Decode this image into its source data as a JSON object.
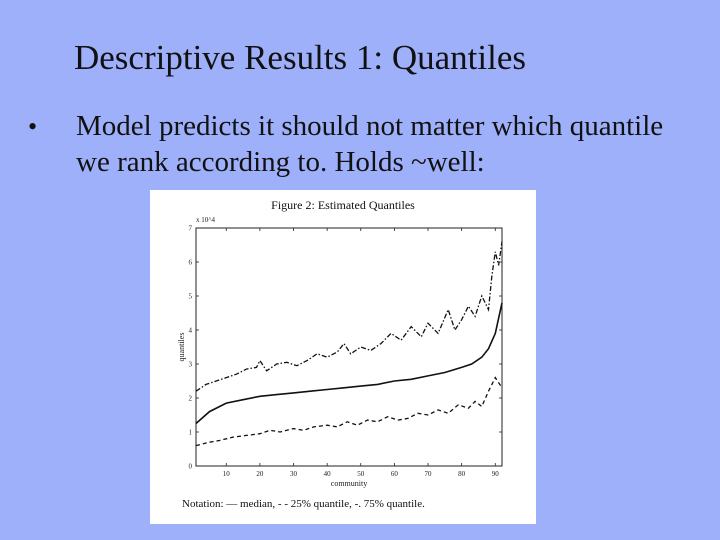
{
  "slide": {
    "title": "Descriptive Results 1: Quantiles",
    "bullet_symbol": "•",
    "bullet_text": "Model predicts it should not matter which quantile we rank according to. Holds ~well:"
  },
  "figure": {
    "title": "Figure 2: Estimated Quantiles",
    "caption": "Notation: — median, - - 25% quantile, -. 75% quantile.",
    "background": "#ffffff"
  },
  "chart_data": {
    "type": "line",
    "title": "Figure 2: Estimated Quantiles",
    "xlabel": "community",
    "ylabel": "quantiles",
    "y_multiplier": "x 10^4",
    "xlim": [
      1,
      92
    ],
    "ylim": [
      0,
      7
    ],
    "x_ticks": [
      10,
      20,
      30,
      40,
      50,
      60,
      70,
      80,
      90
    ],
    "y_ticks": [
      0,
      1,
      2,
      3,
      4,
      5,
      6,
      7
    ],
    "grid": false,
    "series": [
      {
        "name": "median",
        "line_style": "solid",
        "x": [
          1,
          5,
          10,
          15,
          20,
          25,
          30,
          35,
          40,
          45,
          50,
          55,
          60,
          65,
          70,
          75,
          80,
          83,
          86,
          88,
          90,
          92
        ],
        "values": [
          1.25,
          1.6,
          1.85,
          1.95,
          2.05,
          2.1,
          2.15,
          2.2,
          2.25,
          2.3,
          2.35,
          2.4,
          2.5,
          2.55,
          2.65,
          2.75,
          2.9,
          3.0,
          3.2,
          3.45,
          3.9,
          4.8
        ]
      },
      {
        "name": "25% quantile",
        "line_style": "dashed",
        "x": [
          1,
          5,
          8,
          12,
          16,
          20,
          23,
          26,
          30,
          33,
          36,
          40,
          43,
          46,
          49,
          52,
          55,
          58,
          61,
          64,
          67,
          70,
          73,
          76,
          79,
          82,
          84,
          86,
          88,
          90,
          92
        ],
        "values": [
          0.6,
          0.7,
          0.75,
          0.85,
          0.9,
          0.95,
          1.05,
          1.0,
          1.1,
          1.05,
          1.15,
          1.2,
          1.15,
          1.3,
          1.2,
          1.35,
          1.3,
          1.45,
          1.35,
          1.4,
          1.55,
          1.5,
          1.65,
          1.55,
          1.8,
          1.7,
          1.9,
          1.75,
          2.2,
          2.6,
          2.3
        ]
      },
      {
        "name": "75% quantile",
        "line_style": "dashdot",
        "x": [
          1,
          4,
          7,
          10,
          13,
          16,
          19,
          20,
          22,
          25,
          28,
          31,
          34,
          37,
          40,
          43,
          45,
          47,
          50,
          53,
          56,
          59,
          62,
          65,
          68,
          70,
          73,
          76,
          78,
          80,
          82,
          84,
          86,
          88,
          89,
          90,
          91,
          92
        ],
        "values": [
          2.2,
          2.4,
          2.5,
          2.6,
          2.7,
          2.85,
          2.9,
          3.1,
          2.8,
          3.0,
          3.05,
          2.95,
          3.1,
          3.3,
          3.2,
          3.35,
          3.6,
          3.3,
          3.5,
          3.4,
          3.6,
          3.9,
          3.7,
          4.1,
          3.8,
          4.2,
          3.9,
          4.6,
          4.0,
          4.3,
          4.7,
          4.4,
          5.0,
          4.6,
          5.6,
          6.3,
          5.9,
          6.6
        ]
      }
    ]
  }
}
